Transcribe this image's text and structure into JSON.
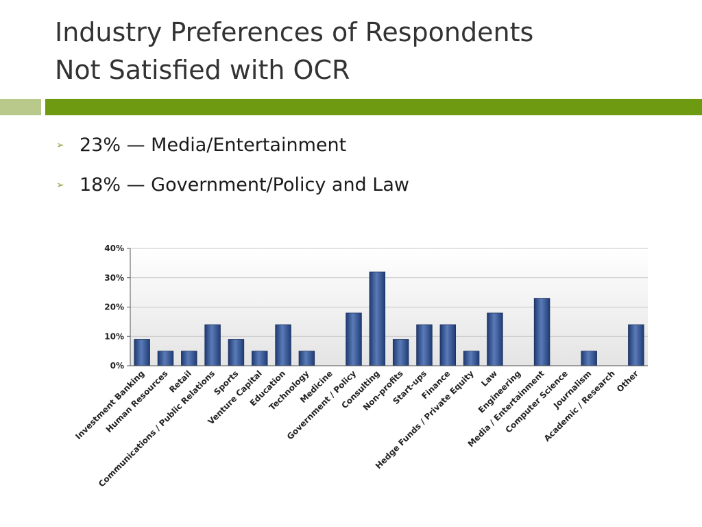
{
  "slide": {
    "title_line1": "Industry Preferences of Respondents",
    "title_line2": "Not Satisfied with OCR",
    "bullets": [
      "23% — Media/Entertainment",
      "18% — Government/Policy and Law"
    ],
    "bullet_icon": "arrowhead-bullet-icon",
    "accent_color": "#6e9a12",
    "accent_light_color": "#b8c98b"
  },
  "chart_data": {
    "type": "bar",
    "categories": [
      "Investment Banking",
      "Human Resources",
      "Retail",
      "Communications / Public Relations",
      "Sports",
      "Venture Capital",
      "Education",
      "Technology",
      "Medicine",
      "Government / Policy",
      "Consulting",
      "Non-profits",
      "Start-ups",
      "Finance",
      "Hedge Funds / Private Equity",
      "Law",
      "Engineering",
      "Media / Entertainment",
      "Computer Science",
      "Journalism",
      "Academic / Research",
      "Other"
    ],
    "values": [
      9,
      5,
      5,
      14,
      9,
      5,
      14,
      5,
      0,
      18,
      32,
      9,
      14,
      14,
      5,
      18,
      0,
      23,
      0,
      5,
      0,
      14
    ],
    "ylim": [
      0,
      40
    ],
    "yticks": [
      "0%",
      "10%",
      "20%",
      "30%",
      "40%"
    ],
    "ytick_values": [
      0,
      10,
      20,
      30,
      40
    ],
    "grid": true,
    "legend": "none",
    "bar_color": "#2f4f8f",
    "title": "",
    "xlabel": "",
    "ylabel": ""
  }
}
